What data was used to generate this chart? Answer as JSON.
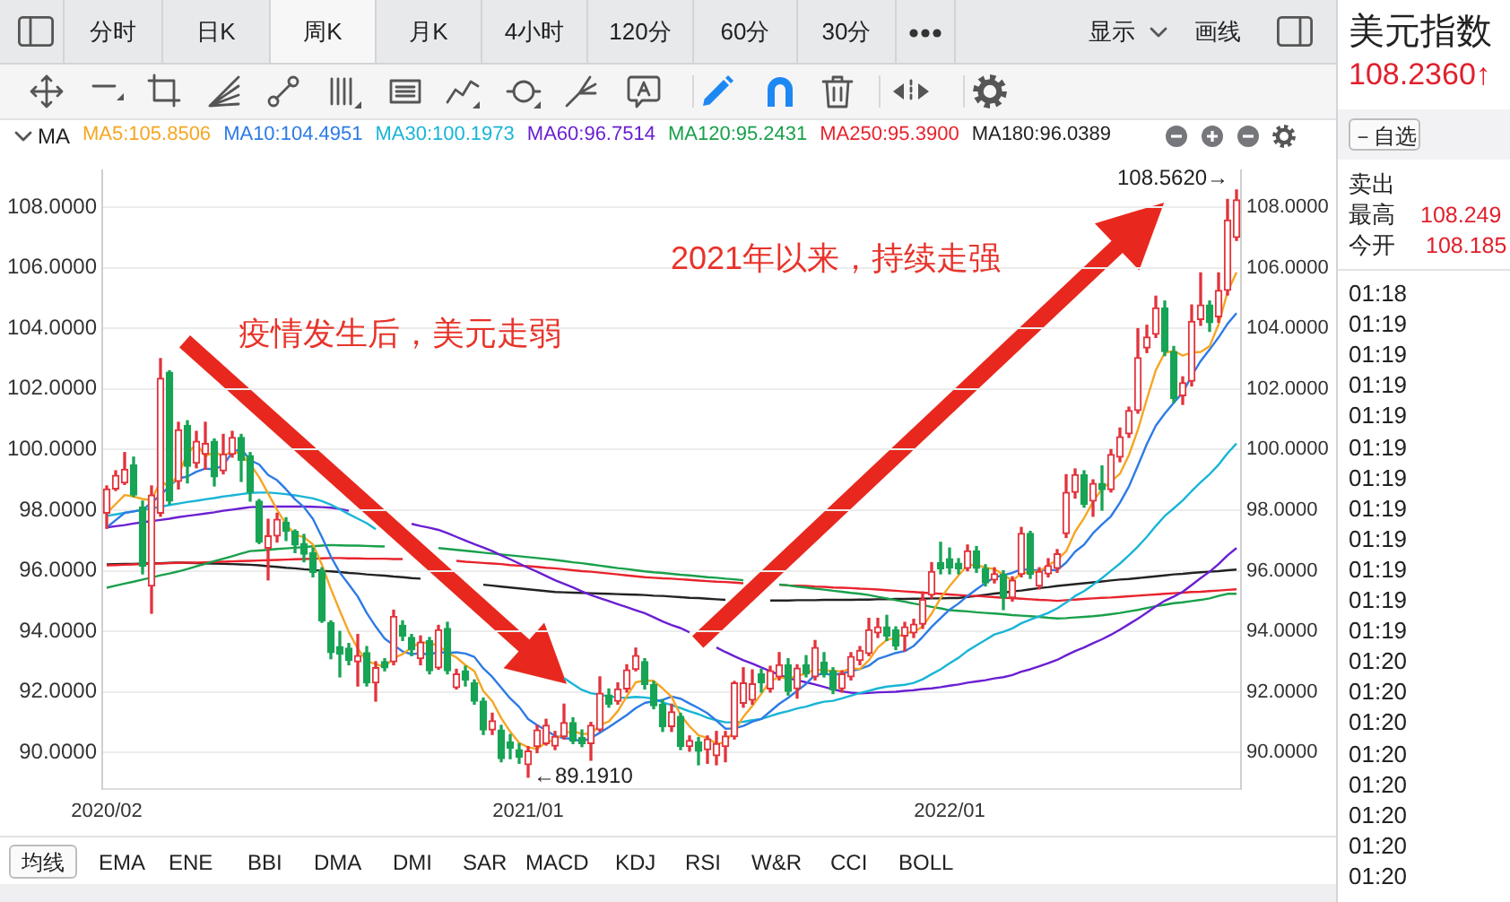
{
  "chart_data": {
    "type": "candlestick",
    "categories": [
      "2020/02",
      null,
      null,
      null,
      null,
      null,
      null,
      null,
      null,
      null,
      null,
      null,
      null,
      null,
      null,
      null,
      null,
      null,
      null,
      null,
      null,
      null,
      null,
      null,
      null,
      null,
      null,
      null,
      null,
      null,
      null,
      null,
      null,
      null,
      null,
      null,
      null,
      null,
      null,
      null,
      null,
      null,
      null,
      null,
      null,
      null,
      null,
      "2021/01",
      null,
      null,
      null,
      null,
      null,
      null,
      null,
      null,
      null,
      null,
      null,
      null,
      null,
      null,
      null,
      null,
      null,
      null,
      null,
      null,
      null,
      null,
      null,
      null,
      null,
      null,
      null,
      null,
      null,
      null,
      null,
      null,
      null,
      null,
      null,
      null,
      null,
      null,
      null,
      null,
      null,
      null,
      null,
      null,
      null,
      null,
      "2022/01",
      null,
      null,
      null,
      null,
      null,
      null,
      null,
      null,
      null,
      null,
      null,
      null,
      null,
      null,
      null,
      null,
      null,
      null,
      null,
      null,
      null,
      null,
      null,
      null,
      null,
      null,
      null,
      null,
      null,
      null,
      null,
      null
    ],
    "ohlc": [
      [
        97.9,
        98.8,
        97.4,
        98.7
      ],
      [
        98.7,
        99.3,
        98.65,
        99.15
      ],
      [
        98.9,
        99.9,
        98.85,
        99.35
      ],
      [
        99.5,
        99.75,
        98.45,
        98.5
      ],
      [
        98.1,
        98.3,
        95.9,
        96.15
      ],
      [
        95.5,
        98.8,
        94.6,
        98.5
      ],
      [
        97.9,
        103.0,
        97.8,
        102.35
      ],
      [
        102.55,
        102.6,
        98.2,
        98.3
      ],
      [
        98.95,
        100.9,
        98.7,
        100.65
      ],
      [
        100.8,
        100.95,
        98.9,
        99.45
      ],
      [
        99.55,
        100.6,
        99.4,
        100.27
      ],
      [
        99.85,
        100.9,
        99.35,
        100.2
      ],
      [
        100.27,
        100.35,
        98.8,
        99.1
      ],
      [
        99.3,
        100.5,
        99.2,
        99.85
      ],
      [
        99.85,
        100.6,
        99.75,
        100.4
      ],
      [
        100.4,
        100.5,
        98.95,
        99.65
      ],
      [
        99.8,
        99.9,
        98.3,
        98.6
      ],
      [
        98.3,
        98.35,
        96.9,
        96.95
      ],
      [
        96.75,
        97.7,
        95.7,
        97.15
      ],
      [
        97.15,
        97.9,
        96.95,
        97.7
      ],
      [
        97.6,
        97.75,
        97.0,
        97.3
      ],
      [
        97.3,
        97.35,
        96.6,
        96.85
      ],
      [
        96.9,
        97.2,
        96.3,
        96.55
      ],
      [
        96.6,
        96.75,
        95.8,
        95.95
      ],
      [
        96.0,
        96.1,
        94.3,
        94.35
      ],
      [
        94.3,
        94.35,
        93.1,
        93.3
      ],
      [
        93.5,
        94.0,
        92.5,
        93.25
      ],
      [
        93.45,
        93.6,
        92.9,
        93.05
      ],
      [
        93.0,
        93.9,
        92.2,
        93.2
      ],
      [
        93.3,
        93.5,
        92.2,
        92.3
      ],
      [
        92.3,
        93.0,
        91.7,
        92.8
      ],
      [
        93.0,
        93.1,
        92.7,
        92.8
      ],
      [
        93.0,
        94.7,
        92.9,
        94.5
      ],
      [
        94.2,
        94.35,
        93.7,
        93.85
      ],
      [
        93.8,
        93.9,
        93.2,
        93.4
      ],
      [
        93.1,
        93.85,
        92.9,
        93.65
      ],
      [
        93.7,
        93.8,
        92.6,
        92.7
      ],
      [
        92.8,
        94.2,
        92.75,
        94.05
      ],
      [
        94.1,
        94.3,
        92.6,
        92.7
      ],
      [
        92.15,
        92.75,
        92.1,
        92.6
      ],
      [
        92.7,
        92.85,
        92.2,
        92.4
      ],
      [
        92.3,
        92.4,
        91.6,
        91.7
      ],
      [
        91.7,
        91.8,
        90.6,
        90.75
      ],
      [
        90.75,
        91.3,
        90.6,
        91.05
      ],
      [
        90.75,
        90.9,
        89.7,
        89.8
      ],
      [
        90.35,
        90.6,
        89.8,
        90.15
      ],
      [
        90.1,
        90.3,
        89.65,
        89.85
      ],
      [
        89.6,
        90.2,
        89.191,
        90.05
      ],
      [
        90.2,
        90.9,
        90.0,
        90.75
      ],
      [
        90.3,
        91.1,
        90.25,
        90.9
      ],
      [
        90.22,
        90.7,
        90.1,
        90.53
      ],
      [
        90.53,
        91.6,
        90.45,
        90.99
      ],
      [
        90.99,
        91.15,
        90.3,
        90.38
      ],
      [
        90.5,
        90.75,
        90.2,
        90.3
      ],
      [
        90.3,
        91.0,
        89.75,
        90.9
      ],
      [
        90.76,
        92.5,
        90.7,
        91.96
      ],
      [
        91.9,
        92.1,
        91.5,
        91.6
      ],
      [
        91.7,
        92.3,
        91.6,
        92.1
      ],
      [
        92.1,
        92.9,
        92.0,
        92.73
      ],
      [
        92.75,
        93.45,
        92.7,
        93.2
      ],
      [
        93.0,
        93.1,
        92.1,
        92.25
      ],
      [
        92.25,
        92.35,
        91.45,
        91.55
      ],
      [
        91.6,
        91.75,
        90.7,
        90.85
      ],
      [
        90.86,
        91.6,
        90.7,
        91.35
      ],
      [
        91.2,
        91.3,
        90.1,
        90.2
      ],
      [
        90.2,
        90.55,
        90.05,
        90.4
      ],
      [
        90.35,
        90.5,
        89.6,
        90.05
      ],
      [
        90.1,
        90.55,
        89.65,
        90.45
      ],
      [
        89.9,
        90.7,
        89.6,
        90.3
      ],
      [
        90.2,
        90.7,
        89.7,
        90.55
      ],
      [
        90.53,
        92.35,
        90.45,
        92.3
      ],
      [
        91.63,
        92.8,
        91.5,
        92.3
      ],
      [
        91.73,
        92.73,
        91.6,
        92.27
      ],
      [
        92.6,
        92.75,
        92.0,
        92.3
      ],
      [
        92.1,
        92.85,
        92.0,
        92.7
      ],
      [
        92.5,
        93.3,
        92.4,
        92.9
      ],
      [
        92.9,
        93.1,
        91.9,
        92.02
      ],
      [
        92.11,
        92.9,
        91.8,
        92.79
      ],
      [
        92.9,
        93.2,
        92.5,
        92.6
      ],
      [
        92.5,
        93.7,
        92.4,
        93.47
      ],
      [
        92.98,
        93.3,
        92.5,
        92.6
      ],
      [
        92.7,
        92.8,
        91.95,
        92.07
      ],
      [
        92.11,
        92.7,
        92.0,
        92.6
      ],
      [
        92.5,
        93.3,
        92.4,
        93.17
      ],
      [
        93.04,
        93.5,
        92.9,
        93.37
      ],
      [
        93.27,
        94.43,
        93.2,
        94.05
      ],
      [
        93.95,
        94.43,
        93.8,
        94.15
      ],
      [
        94.15,
        94.53,
        93.7,
        93.85
      ],
      [
        94.05,
        94.15,
        93.4,
        93.52
      ],
      [
        93.85,
        94.3,
        93.35,
        94.15
      ],
      [
        93.95,
        94.4,
        93.8,
        94.24
      ],
      [
        94.24,
        95.3,
        94.1,
        95.05
      ],
      [
        95.2,
        96.27,
        95.1,
        95.98
      ],
      [
        96.27,
        96.94,
        95.9,
        96.07
      ],
      [
        96.4,
        96.75,
        95.9,
        96.1
      ],
      [
        96.25,
        96.4,
        95.9,
        96.07
      ],
      [
        96.08,
        96.85,
        96.0,
        96.66
      ],
      [
        96.66,
        96.8,
        95.95,
        96.08
      ],
      [
        96.08,
        96.2,
        95.5,
        95.6
      ],
      [
        95.7,
        96.1,
        95.6,
        95.9
      ],
      [
        95.88,
        96.0,
        94.72,
        95.11
      ],
      [
        95.11,
        95.8,
        95.0,
        95.69
      ],
      [
        95.88,
        97.43,
        95.8,
        97.23
      ],
      [
        97.23,
        97.3,
        95.75,
        95.88
      ],
      [
        95.5,
        96.1,
        95.4,
        95.98
      ],
      [
        95.9,
        96.4,
        95.8,
        96.17
      ],
      [
        96.08,
        96.7,
        95.95,
        96.56
      ],
      [
        97.23,
        99.17,
        97.1,
        98.59
      ],
      [
        98.59,
        99.36,
        98.4,
        99.17
      ],
      [
        99.17,
        99.3,
        98.1,
        98.2
      ],
      [
        98.3,
        99.0,
        97.8,
        98.88
      ],
      [
        98.88,
        99.46,
        98.0,
        98.68
      ],
      [
        98.68,
        100.0,
        98.6,
        99.84
      ],
      [
        99.75,
        100.71,
        99.6,
        100.42
      ],
      [
        100.52,
        101.4,
        100.4,
        101.29
      ],
      [
        101.29,
        103.99,
        101.2,
        103.03
      ],
      [
        103.35,
        104.1,
        103.2,
        103.71
      ],
      [
        103.8,
        105.06,
        103.7,
        104.67
      ],
      [
        104.67,
        104.9,
        103.1,
        103.23
      ],
      [
        103.23,
        103.4,
        101.55,
        101.68
      ],
      [
        101.78,
        102.4,
        101.49,
        102.2
      ],
      [
        102.26,
        104.77,
        102.1,
        104.23
      ],
      [
        104.29,
        105.83,
        104.1,
        104.77
      ],
      [
        104.77,
        104.9,
        103.9,
        104.19
      ],
      [
        104.38,
        105.83,
        104.2,
        105.25
      ],
      [
        105.25,
        108.25,
        105.1,
        107.57
      ],
      [
        107.0,
        108.562,
        106.9,
        108.236
      ]
    ],
    "series": [
      {
        "type": "line",
        "name": "MA5:105.8506",
        "color": "#f5a623",
        "values": [
          97.9,
          98.2,
          98.5,
          98.45,
          98.37,
          98.33,
          98.97,
          98.76,
          99.19,
          99.85,
          100.2,
          99.77,
          99.93,
          99.77,
          99.96,
          99.84,
          99.52,
          99.09,
          98.55,
          98.01,
          97.54,
          97.19,
          97.11,
          96.87,
          96.2,
          95.4,
          94.68,
          93.98,
          93.43,
          93.02,
          92.92,
          92.83,
          93.12,
          93.25,
          93.47,
          93.64,
          93.62,
          93.53,
          93.3,
          93.14,
          92.89,
          92.69,
          92.03,
          91.7,
          91.14,
          90.69,
          90.32,
          90.18,
          90.12,
          90.34,
          90.42,
          90.64,
          90.71,
          90.62,
          90.62,
          90.91,
          91.03,
          91.37,
          91.86,
          92.32,
          92.38,
          92.37,
          92.12,
          91.84,
          91.24,
          90.87,
          90.57,
          90.49,
          90.28,
          90.35,
          90.73,
          91.18,
          91.54,
          91.94,
          92.37,
          92.49,
          92.44,
          92.54,
          92.6,
          92.76,
          92.7,
          92.71,
          92.67,
          92.78,
          92.76,
          93.05,
          93.47,
          93.72,
          93.79,
          93.94,
          93.98,
          94.16,
          94.59,
          95.1,
          95.49,
          95.85,
          96.18,
          96.2,
          96.1,
          96.06,
          95.87,
          95.68,
          95.91,
          95.96,
          95.98,
          96.19,
          96.36,
          96.64,
          97.29,
          97.74,
          98.28,
          98.7,
          98.95,
          99.2,
          99.82,
          100.65,
          101.66,
          102.62,
          103.19,
          103.26,
          103.1,
          103.2,
          103.22,
          103.41,
          104.13,
          105.2,
          105.85
        ]
      },
      {
        "type": "line",
        "name": "MA10:104.4951",
        "color": "#2d7be5",
        "values": [
          97.43,
          97.67,
          97.91,
          97.96,
          98.01,
          98.25,
          98.49,
          98.8,
          99.05,
          99.11,
          99.27,
          99.37,
          99.35,
          99.48,
          99.91,
          100.02,
          99.65,
          99.51,
          99.16,
          98.99,
          98.69,
          98.36,
          98.1,
          97.71,
          97.11,
          96.47,
          95.94,
          95.55,
          95.15,
          94.61,
          94.16,
          93.76,
          93.55,
          93.34,
          93.25,
          93.28,
          93.23,
          93.33,
          93.28,
          93.31,
          93.27,
          93.16,
          92.78,
          92.5,
          92.14,
          91.79,
          91.51,
          91.11,
          90.91,
          90.74,
          90.55,
          90.48,
          90.45,
          90.37,
          90.48,
          90.66,
          90.84,
          91.04,
          91.24,
          91.47,
          91.64,
          91.7,
          91.74,
          91.85,
          91.78,
          91.62,
          91.47,
          91.3,
          91.06,
          90.79,
          90.8,
          90.88,
          91.02,
          91.11,
          91.36,
          91.61,
          91.81,
          92.04,
          92.27,
          92.57,
          92.6,
          92.57,
          92.61,
          92.69,
          92.76,
          92.87,
          93.09,
          93.19,
          93.29,
          93.35,
          93.52,
          93.82,
          94.15,
          94.44,
          94.72,
          94.92,
          95.17,
          95.39,
          95.6,
          95.78,
          95.86,
          95.93,
          96.05,
          96.03,
          96.02,
          96.03,
          96.02,
          96.27,
          96.63,
          96.86,
          97.24,
          97.53,
          97.8,
          98.25,
          98.78,
          99.47,
          100.18,
          100.79,
          101.19,
          101.54,
          101.88,
          102.43,
          102.92,
          103.3,
          103.7,
          104.15,
          104.5
        ]
      },
      {
        "type": "line",
        "name": "MA30:100.1973",
        "color": "#19b5d6",
        "values": [
          97.81,
          97.86,
          97.91,
          97.96,
          98.01,
          98.06,
          98.11,
          98.17,
          98.22,
          98.27,
          98.31,
          98.36,
          98.4,
          98.45,
          98.49,
          98.53,
          98.57,
          98.58,
          98.58,
          98.56,
          98.53,
          98.49,
          98.44,
          98.39,
          98.3,
          98.18,
          98.03,
          97.87,
          97.72,
          97.57,
          97.37,
          null,
          null,
          null,
          null,
          null,
          null,
          null,
          null,
          null,
          null,
          null,
          null,
          null,
          null,
          null,
          null,
          null,
          null,
          null,
          null,
          92.46,
          92.26,
          92.07,
          91.96,
          91.91,
          91.86,
          91.82,
          91.81,
          91.84,
          91.82,
          91.78,
          91.66,
          91.57,
          91.47,
          91.36,
          91.27,
          91.15,
          91.07,
          91.0,
          91.0,
          91.02,
          91.07,
          91.11,
          91.21,
          91.3,
          91.37,
          91.46,
          91.52,
          91.61,
          91.68,
          91.71,
          91.79,
          91.88,
          91.97,
          92.04,
          92.12,
          92.18,
          92.21,
          92.24,
          92.3,
          92.42,
          92.59,
          92.75,
          92.95,
          93.13,
          93.36,
          93.54,
          93.72,
          93.9,
          93.99,
          94.1,
          94.27,
          94.39,
          94.5,
          94.61,
          94.76,
          94.95,
          95.17,
          95.33,
          95.54,
          95.76,
          96.0,
          96.24,
          96.51,
          96.8,
          97.12,
          97.48,
          97.81,
          98.06,
          98.32,
          98.63,
          98.92,
          99.19,
          99.5,
          99.88,
          100.2
        ]
      },
      {
        "type": "line",
        "name": "MA60:96.7514",
        "color": "#6a1fd1",
        "values": [
          97.43,
          97.47,
          97.51,
          97.56,
          97.6,
          97.64,
          97.68,
          97.72,
          97.77,
          97.81,
          97.85,
          97.89,
          97.93,
          97.98,
          98.02,
          98.06,
          98.1,
          98.11,
          98.12,
          98.12,
          98.12,
          98.12,
          98.12,
          98.11,
          98.1,
          98.08,
          98.04,
          97.98,
          null,
          null,
          null,
          null,
          null,
          null,
          97.55,
          97.48,
          97.42,
          97.35,
          97.24,
          97.12,
          97.0,
          96.88,
          96.77,
          96.65,
          96.51,
          96.38,
          96.24,
          96.1,
          95.97,
          95.83,
          95.69,
          95.57,
          95.45,
          95.32,
          95.2,
          95.1,
          95.0,
          94.9,
          94.8,
          94.7,
          94.6,
          94.47,
          94.33,
          94.21,
          94.11,
          93.97,
          null,
          null,
          93.47,
          93.32,
          93.18,
          93.05,
          92.94,
          92.81,
          92.69,
          92.57,
          92.46,
          92.39,
          92.32,
          92.25,
          92.17,
          92.09,
          92.02,
          91.98,
          91.96,
          91.97,
          91.99,
          92.0,
          92.01,
          92.04,
          92.06,
          92.1,
          92.12,
          92.16,
          92.21,
          92.25,
          92.31,
          92.35,
          92.39,
          92.45,
          92.49,
          92.56,
          92.67,
          92.75,
          92.85,
          92.95,
          93.06,
          93.21,
          93.35,
          93.47,
          93.61,
          93.74,
          93.89,
          94.06,
          94.24,
          94.42,
          94.62,
          94.83,
          95.01,
          95.15,
          95.31,
          95.53,
          95.76,
          95.97,
          96.22,
          96.51,
          96.75
        ]
      },
      {
        "type": "line",
        "name": "MA120:95.2431",
        "color": "#19a04b",
        "values": [
          95.44,
          95.51,
          95.58,
          95.64,
          95.71,
          95.78,
          95.85,
          95.91,
          95.98,
          96.06,
          96.15,
          96.23,
          96.32,
          96.4,
          96.48,
          96.57,
          96.65,
          96.67,
          96.69,
          96.72,
          96.74,
          96.76,
          96.78,
          96.81,
          96.83,
          96.85,
          96.84,
          96.83,
          96.83,
          96.82,
          96.81,
          96.8,
          null,
          null,
          null,
          null,
          null,
          96.75,
          96.72,
          96.69,
          96.66,
          96.63,
          96.6,
          96.57,
          96.54,
          96.51,
          96.48,
          96.45,
          96.42,
          96.39,
          96.36,
          96.32,
          96.28,
          96.25,
          96.21,
          96.17,
          96.13,
          96.09,
          96.06,
          96.02,
          95.98,
          95.95,
          95.93,
          95.9,
          95.87,
          95.85,
          95.82,
          95.79,
          95.77,
          95.74,
          95.72,
          95.69,
          null,
          null,
          null,
          95.55,
          95.52,
          95.48,
          95.45,
          95.41,
          95.38,
          95.34,
          95.31,
          95.27,
          95.24,
          95.2,
          95.14,
          95.09,
          95.03,
          94.98,
          94.92,
          94.87,
          94.81,
          94.76,
          94.7,
          94.68,
          94.66,
          94.63,
          94.61,
          94.59,
          94.57,
          94.54,
          94.52,
          94.5,
          94.48,
          94.45,
          94.43,
          94.44,
          94.46,
          94.48,
          94.5,
          94.53,
          94.57,
          94.61,
          94.66,
          94.71,
          94.77,
          94.83,
          94.88,
          94.93,
          94.96,
          95.0,
          95.04,
          95.09,
          95.17,
          95.24,
          95.24
        ]
      },
      {
        "type": "line",
        "name": "MA250:95.3900",
        "color": "#e8232d",
        "values": [
          96.18,
          96.19,
          96.2,
          96.21,
          96.22,
          96.23,
          96.24,
          96.25,
          96.26,
          96.27,
          96.27,
          96.28,
          96.29,
          96.3,
          96.31,
          96.32,
          96.33,
          96.34,
          96.35,
          96.36,
          96.37,
          96.38,
          96.39,
          96.4,
          96.41,
          96.42,
          96.42,
          96.41,
          96.41,
          96.4,
          96.4,
          96.4,
          96.39,
          96.39,
          null,
          null,
          null,
          null,
          null,
          96.33,
          96.3,
          96.28,
          96.26,
          96.24,
          96.22,
          96.19,
          96.17,
          96.15,
          96.13,
          96.1,
          96.08,
          96.05,
          96.02,
          95.99,
          95.97,
          95.94,
          95.91,
          95.88,
          95.85,
          95.82,
          95.79,
          95.77,
          95.75,
          95.74,
          95.72,
          95.7,
          95.68,
          95.66,
          95.64,
          95.63,
          95.61,
          95.59,
          null,
          null,
          null,
          95.54,
          95.52,
          95.51,
          95.5,
          95.48,
          95.47,
          95.45,
          95.44,
          95.43,
          95.41,
          95.4,
          95.38,
          95.36,
          95.34,
          95.32,
          95.3,
          95.28,
          95.26,
          95.24,
          95.22,
          95.2,
          95.18,
          95.17,
          95.15,
          95.13,
          95.11,
          95.1,
          95.08,
          95.06,
          95.04,
          95.03,
          95.01,
          95.03,
          95.05,
          95.07,
          95.09,
          95.11,
          95.12,
          95.14,
          95.16,
          95.18,
          95.2,
          95.22,
          95.24,
          95.26,
          95.28,
          95.3,
          95.31,
          95.33,
          95.35,
          95.37,
          95.39
        ]
      },
      {
        "type": "line",
        "name": "MA180:96.0389",
        "color": "#222222",
        "values": [
          96.21,
          96.22,
          96.23,
          96.23,
          96.24,
          96.25,
          96.25,
          96.26,
          96.27,
          96.26,
          96.25,
          96.24,
          96.24,
          96.23,
          96.22,
          96.21,
          96.2,
          96.18,
          96.15,
          96.13,
          96.1,
          96.08,
          96.05,
          96.03,
          96.0,
          95.98,
          95.96,
          95.93,
          95.91,
          95.88,
          95.86,
          95.84,
          95.81,
          95.79,
          95.76,
          95.74,
          null,
          null,
          null,
          null,
          null,
          null,
          95.54,
          95.51,
          95.48,
          95.45,
          95.42,
          95.39,
          95.36,
          95.33,
          95.3,
          95.29,
          95.28,
          95.27,
          95.26,
          95.25,
          95.24,
          95.23,
          95.22,
          95.21,
          95.2,
          95.18,
          95.17,
          95.15,
          95.13,
          95.11,
          95.1,
          95.08,
          95.06,
          95.04,
          null,
          null,
          null,
          null,
          95.02,
          95.02,
          95.02,
          95.03,
          95.03,
          95.03,
          95.04,
          95.04,
          95.04,
          95.04,
          95.05,
          95.05,
          95.06,
          95.06,
          95.07,
          95.07,
          95.08,
          95.08,
          95.09,
          95.09,
          95.1,
          95.1,
          95.14,
          95.17,
          95.21,
          95.25,
          95.28,
          95.32,
          95.35,
          95.39,
          95.43,
          95.46,
          95.5,
          95.53,
          95.56,
          95.59,
          95.62,
          95.65,
          95.68,
          95.71,
          95.73,
          95.76,
          95.79,
          95.82,
          95.85,
          95.88,
          95.9,
          95.93,
          95.95,
          95.97,
          95.99,
          96.02,
          96.04
        ]
      }
    ],
    "ylim": [
      88.8,
      109.2
    ],
    "yticks": [
      {
        "value": 90,
        "label": "90.0000"
      },
      {
        "value": 92,
        "label": "92.0000"
      },
      {
        "value": 94,
        "label": "94.0000"
      },
      {
        "value": 96,
        "label": "96.0000"
      },
      {
        "value": 98,
        "label": "98.0000"
      },
      {
        "value": 100,
        "label": "100.0000"
      },
      {
        "value": 102,
        "label": "102.0000"
      },
      {
        "value": 104,
        "label": "104.0000"
      },
      {
        "value": 106,
        "label": "106.0000"
      },
      {
        "value": 108,
        "label": "108.0000"
      }
    ],
    "y2lim": [
      88.8,
      109.2
    ],
    "y2ticks": [
      {
        "value": 90,
        "label": "90.0000"
      },
      {
        "value": 92,
        "label": "92.0000"
      },
      {
        "value": 94,
        "label": "94.0000"
      },
      {
        "value": 96,
        "label": "96.0000"
      },
      {
        "value": 98,
        "label": "98.0000"
      },
      {
        "value": 100,
        "label": "100.0000"
      },
      {
        "value": 102,
        "label": "102.0000"
      },
      {
        "value": 104,
        "label": "104.0000"
      },
      {
        "value": 106,
        "label": "106.0000"
      },
      {
        "value": 108,
        "label": "108.0000"
      }
    ],
    "grid": "y",
    "legend": "top left",
    "annotations": [
      "疫情发生后，美元走弱",
      "2021年以来，持续走强",
      "108.5620→",
      {
        "text": "←89.1910",
        "x": "2021/01",
        "y": 89.191
      },
      "分时",
      "日K",
      "周K",
      "月K",
      "4小时",
      "120分",
      "60分",
      "30分",
      "显示",
      "画线",
      "MA",
      "美元指数",
      "108.2360↑",
      "－自选",
      "卖出",
      "最高",
      "108.249",
      "今开",
      "108.185",
      "01:18",
      "01:19",
      "01:19",
      "01:19",
      "01:19",
      "01:19",
      "01:19",
      "01:19",
      "01:19",
      "01:19",
      "01:19",
      "01:19",
      "01:20",
      "01:20",
      "01:20",
      "01:20",
      "01:20",
      "01:20",
      "01:20",
      "01:20",
      "均线",
      "EMA",
      "ENE",
      "BBI",
      "DMA",
      "DMI",
      "SAR",
      "MACD",
      "KDJ",
      "RSI",
      "W&R",
      "CCI",
      "BOLL"
    ]
  }
}
